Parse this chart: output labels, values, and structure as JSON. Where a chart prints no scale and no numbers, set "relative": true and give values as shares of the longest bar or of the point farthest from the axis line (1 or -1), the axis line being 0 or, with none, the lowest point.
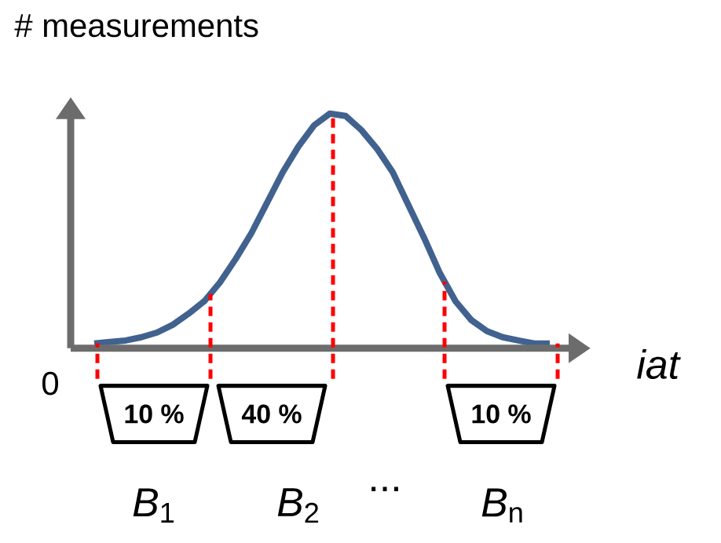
{
  "chart_data": {
    "type": "line",
    "relative": true,
    "xlabel": "iat",
    "ylabel": "# measurements",
    "categories": [
      null,
      null,
      null,
      null,
      null,
      null,
      null,
      null,
      null,
      null,
      null,
      null,
      null,
      null,
      null,
      null,
      null,
      null,
      null,
      null,
      null,
      null,
      null,
      null,
      null,
      null,
      null,
      null,
      null,
      null
    ],
    "series": [
      {
        "color": "#41628f",
        "values": [
          0.02,
          0.027,
          0.033,
          0.047,
          0.067,
          0.1,
          0.147,
          0.2,
          0.28,
          0.38,
          0.49,
          0.62,
          0.75,
          0.86,
          0.95,
          1.0,
          0.99,
          0.93,
          0.85,
          0.75,
          0.61,
          0.47,
          0.32,
          0.2,
          0.12,
          0.073,
          0.047,
          0.033,
          0.02,
          0.02
        ]
      }
    ],
    "annotations": [
      "0",
      "10 %",
      "40 %",
      "10 %",
      "*B*$_{1}$",
      "*B*$_{2}$",
      "...",
      "*B*$_{n}$"
    ]
  }
}
